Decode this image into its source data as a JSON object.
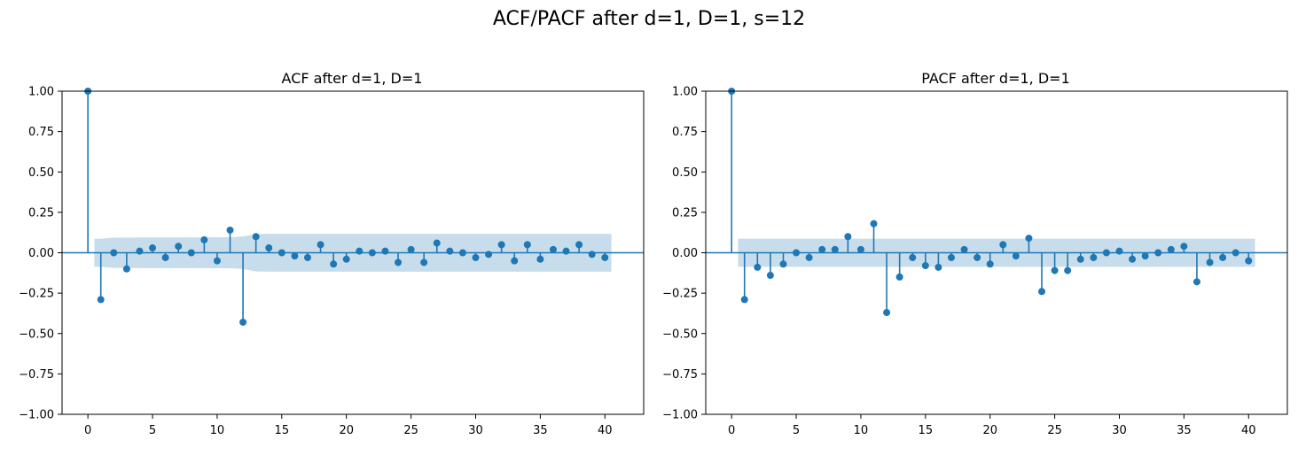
{
  "figure_title": "ACF/PACF after d=1, D=1, s=12",
  "colors": {
    "stem": "#1f77b4",
    "band": "#1f77b4",
    "axis": "#000000"
  },
  "chart_data": [
    {
      "type": "stem",
      "title": "ACF after d=1, D=1",
      "xlabel": "",
      "ylabel": "",
      "xlim": [
        -2,
        43
      ],
      "ylim": [
        -1.0,
        1.0
      ],
      "xticks": [
        0,
        5,
        10,
        15,
        20,
        25,
        30,
        35,
        40
      ],
      "yticks": [
        1.0,
        0.75,
        0.5,
        0.25,
        0.0,
        -0.25,
        -0.5,
        -0.75,
        -1.0
      ],
      "ytick_labels": [
        "1.00",
        "0.75",
        "0.50",
        "0.25",
        "0.00",
        "−0.25",
        "−0.50",
        "−0.75",
        "−1.00"
      ],
      "grid": false,
      "lags": [
        0,
        1,
        2,
        3,
        4,
        5,
        6,
        7,
        8,
        9,
        10,
        11,
        12,
        13,
        14,
        15,
        16,
        17,
        18,
        19,
        20,
        21,
        22,
        23,
        24,
        25,
        26,
        27,
        28,
        29,
        30,
        31,
        32,
        33,
        34,
        35,
        36,
        37,
        38,
        39,
        40
      ],
      "values": [
        1.0,
        -0.29,
        0.0,
        -0.1,
        0.01,
        0.03,
        -0.03,
        0.04,
        0.0,
        0.08,
        -0.05,
        0.14,
        -0.43,
        0.1,
        0.03,
        0.0,
        -0.02,
        -0.03,
        0.05,
        -0.07,
        -0.04,
        0.01,
        0.0,
        0.01,
        -0.06,
        0.02,
        -0.06,
        0.06,
        0.01,
        0.0,
        -0.03,
        -0.01,
        0.05,
        -0.05,
        0.05,
        -0.04,
        0.02,
        0.01,
        0.05,
        -0.01,
        -0.03
      ],
      "conf_band": {
        "x": [
          0.5,
          1,
          2,
          3,
          4,
          5,
          6,
          7,
          8,
          9,
          10,
          11,
          12,
          13,
          14,
          15,
          16,
          17,
          18,
          19,
          20,
          21,
          22,
          23,
          24,
          25,
          26,
          27,
          28,
          29,
          30,
          31,
          32,
          33,
          34,
          35,
          36,
          37,
          38,
          39,
          40,
          40.5
        ],
        "upper": [
          0.087,
          0.087,
          0.094,
          0.094,
          0.095,
          0.095,
          0.095,
          0.095,
          0.095,
          0.095,
          0.096,
          0.096,
          0.101,
          0.116,
          0.117,
          0.117,
          0.117,
          0.117,
          0.117,
          0.117,
          0.117,
          0.117,
          0.117,
          0.117,
          0.117,
          0.117,
          0.117,
          0.117,
          0.117,
          0.117,
          0.117,
          0.117,
          0.117,
          0.117,
          0.117,
          0.117,
          0.117,
          0.117,
          0.117,
          0.117,
          0.117,
          0.117
        ]
      }
    },
    {
      "type": "stem",
      "title": "PACF after d=1, D=1",
      "xlabel": "",
      "ylabel": "",
      "xlim": [
        -2,
        43
      ],
      "ylim": [
        -1.0,
        1.0
      ],
      "xticks": [
        0,
        5,
        10,
        15,
        20,
        25,
        30,
        35,
        40
      ],
      "yticks": [
        1.0,
        0.75,
        0.5,
        0.25,
        0.0,
        -0.25,
        -0.5,
        -0.75,
        -1.0
      ],
      "ytick_labels": [
        "1.00",
        "0.75",
        "0.50",
        "0.25",
        "0.00",
        "−0.25",
        "−0.50",
        "−0.75",
        "−1.00"
      ],
      "grid": false,
      "lags": [
        0,
        1,
        2,
        3,
        4,
        5,
        6,
        7,
        8,
        9,
        10,
        11,
        12,
        13,
        14,
        15,
        16,
        17,
        18,
        19,
        20,
        21,
        22,
        23,
        24,
        25,
        26,
        27,
        28,
        29,
        30,
        31,
        32,
        33,
        34,
        35,
        36,
        37,
        38,
        39,
        40
      ],
      "values": [
        1.0,
        -0.29,
        -0.09,
        -0.14,
        -0.07,
        0.0,
        -0.03,
        0.02,
        0.02,
        0.1,
        0.02,
        0.18,
        -0.37,
        -0.15,
        -0.03,
        -0.08,
        -0.09,
        -0.03,
        0.02,
        -0.03,
        -0.07,
        0.05,
        -0.02,
        0.09,
        -0.24,
        -0.11,
        -0.11,
        -0.04,
        -0.03,
        0.0,
        0.01,
        -0.04,
        -0.02,
        0.0,
        0.02,
        0.04,
        -0.18,
        -0.06,
        -0.03,
        0.0,
        -0.05
      ],
      "conf_band": {
        "x": [
          0.5,
          40.5
        ],
        "upper": [
          0.087,
          0.087
        ]
      }
    }
  ]
}
